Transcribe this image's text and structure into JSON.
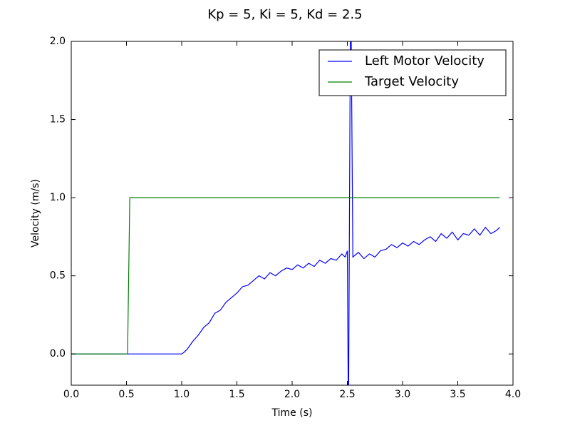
{
  "chart_data": {
    "type": "line",
    "title": "Kp = 5, Ki = 5, Kd = 2.5",
    "x_label": "Time (s)",
    "y_label": "Velocity (m/s)",
    "xlim": [
      0,
      4
    ],
    "ylim": [
      -0.2,
      2.0
    ],
    "xticks": [
      {
        "value": 0,
        "label": "0.0"
      },
      {
        "value": 0.5,
        "label": "0.5"
      },
      {
        "value": 1,
        "label": "1.0"
      },
      {
        "value": 1.5,
        "label": "1.5"
      },
      {
        "value": 2,
        "label": "2.0"
      },
      {
        "value": 2.5,
        "label": "2.5"
      },
      {
        "value": 3,
        "label": "3.0"
      },
      {
        "value": 3.5,
        "label": "3.5"
      },
      {
        "value": 4,
        "label": "4.0"
      }
    ],
    "yticks": [
      {
        "value": 0,
        "label": "0.0"
      },
      {
        "value": 0.5,
        "label": "0.5"
      },
      {
        "value": 1,
        "label": "1.0"
      },
      {
        "value": 1.5,
        "label": "1.5"
      },
      {
        "value": 2,
        "label": "2.0"
      }
    ],
    "legend": "upper right",
    "series": [
      {
        "name": "Left Motor Velocity",
        "color": "#0000ff",
        "x": [
          0,
          1.0,
          1.02,
          1.05,
          1.1,
          1.15,
          1.2,
          1.25,
          1.3,
          1.35,
          1.4,
          1.45,
          1.5,
          1.55,
          1.6,
          1.65,
          1.7,
          1.75,
          1.8,
          1.85,
          1.9,
          1.95,
          2.0,
          2.05,
          2.1,
          2.15,
          2.2,
          2.25,
          2.3,
          2.35,
          2.4,
          2.45,
          2.48,
          2.5,
          2.51,
          2.53,
          2.55,
          2.6,
          2.65,
          2.7,
          2.75,
          2.8,
          2.85,
          2.9,
          2.95,
          3.0,
          3.05,
          3.1,
          3.15,
          3.2,
          3.25,
          3.3,
          3.35,
          3.4,
          3.45,
          3.5,
          3.55,
          3.6,
          3.65,
          3.7,
          3.75,
          3.8,
          3.85,
          3.88
        ],
        "values": [
          0,
          0,
          0.01,
          0.03,
          0.08,
          0.12,
          0.17,
          0.2,
          0.26,
          0.28,
          0.33,
          0.36,
          0.39,
          0.43,
          0.44,
          0.47,
          0.5,
          0.48,
          0.52,
          0.5,
          0.53,
          0.55,
          0.54,
          0.57,
          0.55,
          0.58,
          0.56,
          0.6,
          0.58,
          0.61,
          0.6,
          0.64,
          0.62,
          0.66,
          -0.5,
          2.5,
          0.62,
          0.65,
          0.61,
          0.64,
          0.62,
          0.66,
          0.67,
          0.7,
          0.68,
          0.71,
          0.69,
          0.72,
          0.7,
          0.73,
          0.75,
          0.72,
          0.77,
          0.74,
          0.78,
          0.73,
          0.77,
          0.76,
          0.8,
          0.76,
          0.81,
          0.77,
          0.79,
          0.81
        ]
      },
      {
        "name": "Target Velocity",
        "color": "#008000",
        "x": [
          0,
          0.51,
          0.53,
          3.88
        ],
        "values": [
          0,
          0,
          1,
          1
        ]
      }
    ]
  }
}
